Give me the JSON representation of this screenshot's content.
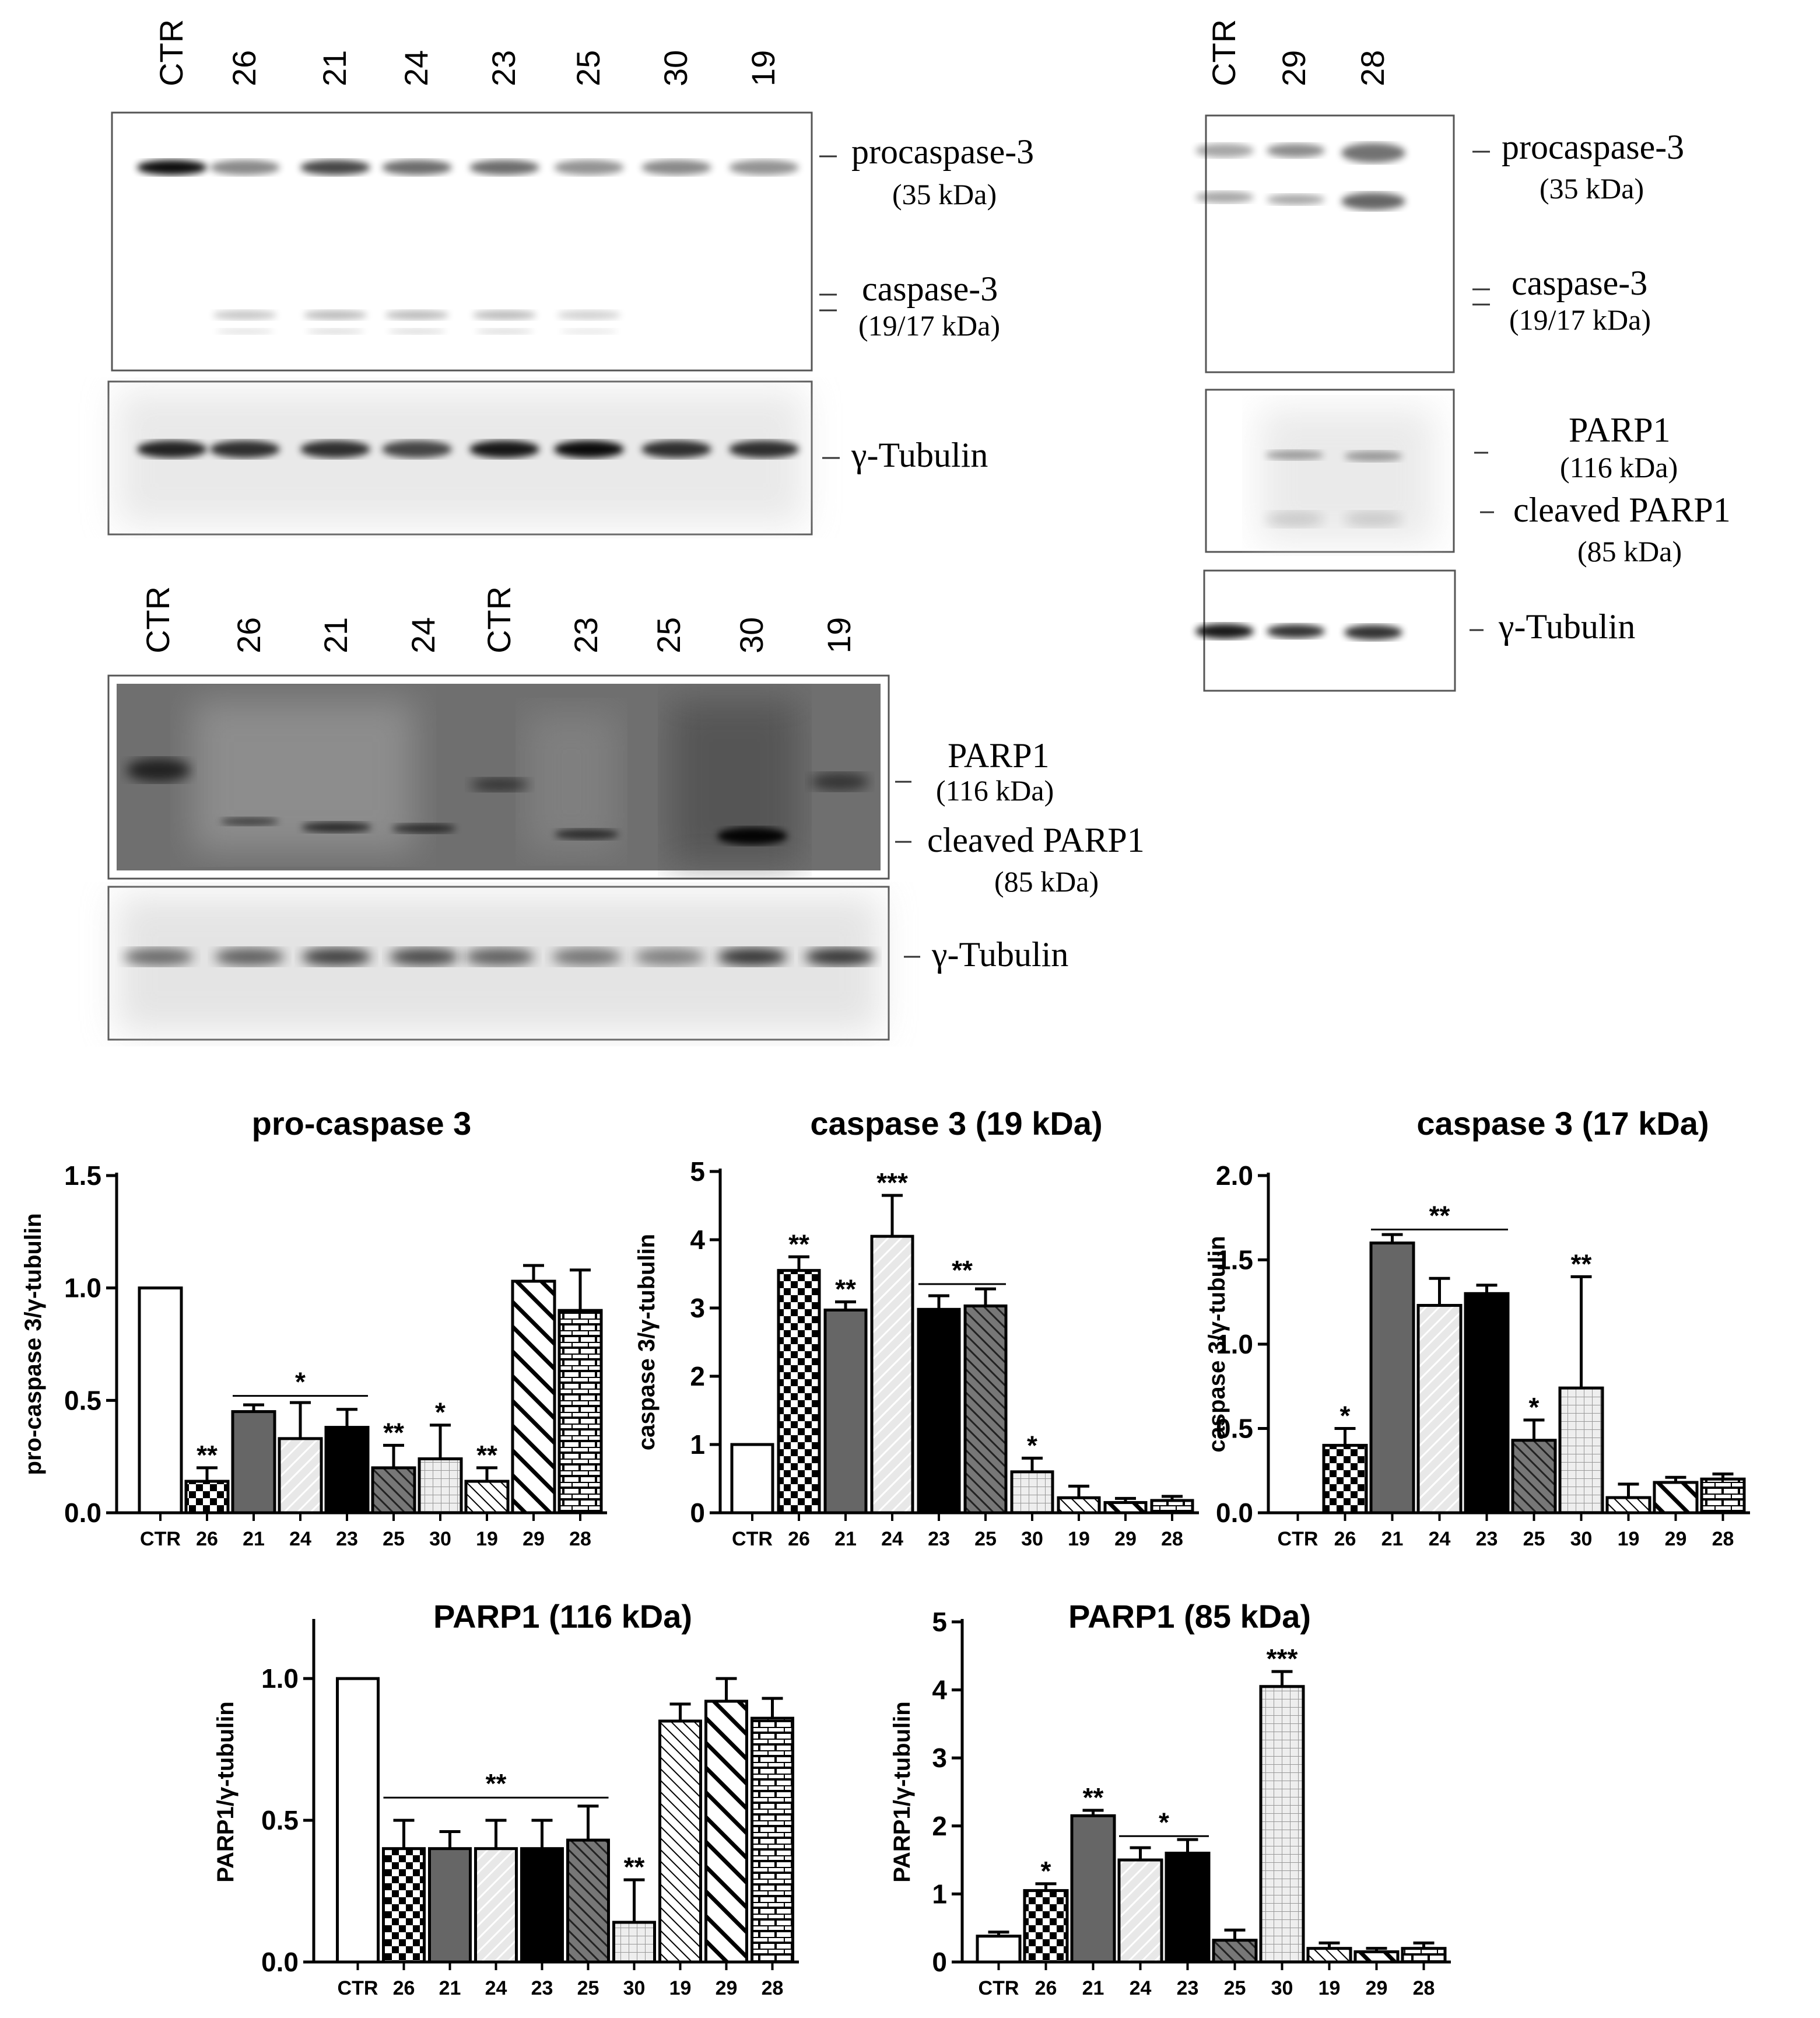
{
  "blots": {
    "caspase_top_left": {
      "lanes": [
        "CTR",
        "26",
        "21",
        "24",
        "23",
        "25",
        "30",
        "19"
      ],
      "labels": {
        "procaspase": "procaspase-3",
        "procaspase_kda": "(35 kDa)",
        "caspase": "caspase-3",
        "caspase_kda": "(19/17 kDa)",
        "tubulin": "γ-Tubulin"
      },
      "procaspase_intensity": [
        1.0,
        0.35,
        0.7,
        0.5,
        0.5,
        0.3,
        0.35,
        0.3
      ],
      "caspase_intensity": [
        0,
        0.25,
        0.3,
        0.3,
        0.3,
        0.2,
        0,
        0
      ],
      "tubulin_intensity": [
        0.85,
        0.8,
        0.8,
        0.7,
        0.9,
        0.95,
        0.8,
        0.8
      ]
    },
    "parp_bottom_left": {
      "lanes": [
        "CTR",
        "26",
        "21",
        "24",
        "CTR",
        "23",
        "25",
        "30",
        "19"
      ],
      "labels": {
        "parp": "PARP1",
        "parp_kda": "(116 kDa)",
        "cleaved": "cleaved PARP1",
        "cleaved_kda": "(85 kDa)",
        "tubulin": "γ-Tubulin"
      }
    },
    "right": {
      "lanes": [
        "CTR",
        "29",
        "28"
      ],
      "labels": {
        "procaspase": "procaspase-3",
        "procaspase_kda": "(35 kDa)",
        "caspase": "caspase-3",
        "caspase_kda": "(19/17 kDa)",
        "parp": "PARP1",
        "parp_kda": "(116 kDa)",
        "cleaved": "cleaved PARP1",
        "cleaved_kda": "(85 kDa)",
        "tubulin": "γ-Tubulin"
      }
    }
  },
  "chart_data": [
    {
      "type": "bar",
      "title": "pro-caspase 3",
      "ylabel": "pro-caspase 3/γ-tubulin",
      "xlabel": "",
      "categories": [
        "CTR",
        "26",
        "21",
        "24",
        "23",
        "25",
        "30",
        "19",
        "29",
        "28"
      ],
      "values": [
        1.0,
        0.14,
        0.45,
        0.33,
        0.38,
        0.2,
        0.24,
        0.14,
        1.03,
        0.9
      ],
      "errors": [
        0,
        0.06,
        0.03,
        0.16,
        0.08,
        0.1,
        0.15,
        0.06,
        0.07,
        0.18
      ],
      "ylim": [
        0,
        1.5
      ],
      "yticks": [
        "0.0",
        "0.5",
        "1.0",
        "1.5"
      ],
      "significance": [
        {
          "category": "26",
          "label": "**"
        },
        {
          "category": "25",
          "label": "**"
        },
        {
          "category": "30",
          "label": "*"
        },
        {
          "category": "19",
          "label": "**"
        }
      ],
      "brackets": [
        {
          "from": "21",
          "to": "23",
          "label": "*",
          "y": 0.52
        }
      ]
    },
    {
      "type": "bar",
      "title": "caspase 3 (19 kDa)",
      "ylabel": "caspase 3/γ-tubulin",
      "xlabel": "",
      "categories": [
        "CTR",
        "26",
        "21",
        "24",
        "23",
        "25",
        "30",
        "19",
        "29",
        "28"
      ],
      "values": [
        1.0,
        3.55,
        2.97,
        4.05,
        2.98,
        3.03,
        0.6,
        0.22,
        0.15,
        0.18
      ],
      "errors": [
        0,
        0.2,
        0.12,
        0.6,
        0.2,
        0.25,
        0.2,
        0.17,
        0.06,
        0.06
      ],
      "ylim": [
        0,
        5
      ],
      "yticks": [
        "0",
        "1",
        "2",
        "3",
        "4",
        "5"
      ],
      "significance": [
        {
          "category": "26",
          "label": "**"
        },
        {
          "category": "21",
          "label": "**"
        },
        {
          "category": "24",
          "label": "***"
        },
        {
          "category": "30",
          "label": "*"
        }
      ],
      "brackets": [
        {
          "from": "23",
          "to": "25",
          "label": "**",
          "y": 3.35
        }
      ]
    },
    {
      "type": "bar",
      "title": "caspase 3 (17 kDa)",
      "ylabel": "caspase 3/γ-tubulin",
      "xlabel": "",
      "categories": [
        "CTR",
        "26",
        "21",
        "24",
        "23",
        "25",
        "30",
        "19",
        "29",
        "28"
      ],
      "values": [
        0,
        0.4,
        1.6,
        1.23,
        1.3,
        0.43,
        0.74,
        0.09,
        0.18,
        0.2
      ],
      "errors": [
        0,
        0.1,
        0.05,
        0.16,
        0.05,
        0.12,
        0.66,
        0.08,
        0.03,
        0.03
      ],
      "ylim": [
        0,
        2.0
      ],
      "yticks": [
        "0.0",
        "0.5",
        "1.0",
        "1.5",
        "2.0"
      ],
      "significance": [
        {
          "category": "26",
          "label": "*"
        },
        {
          "category": "25",
          "label": "*"
        },
        {
          "category": "30",
          "label": "**"
        }
      ],
      "brackets": [
        {
          "from": "21",
          "to": "23",
          "label": "**",
          "y": 1.68
        }
      ]
    },
    {
      "type": "bar",
      "title": "PARP1 (116 kDa)",
      "ylabel": "PARP1/γ-tubulin",
      "xlabel": "",
      "categories": [
        "CTR",
        "26",
        "21",
        "24",
        "23",
        "25",
        "30",
        "19",
        "29",
        "28"
      ],
      "values": [
        1.0,
        0.4,
        0.4,
        0.4,
        0.4,
        0.43,
        0.14,
        0.85,
        0.92,
        0.86
      ],
      "errors": [
        0,
        0.1,
        0.06,
        0.1,
        0.1,
        0.12,
        0.15,
        0.06,
        0.08,
        0.07
      ],
      "ylim": [
        0,
        1.2
      ],
      "yticks": [
        "0.0",
        "0.5",
        "1.0"
      ],
      "significance": [
        {
          "category": "30",
          "label": "**"
        }
      ],
      "brackets": [
        {
          "from": "26",
          "to": "25",
          "label": "**",
          "y": 0.58
        }
      ]
    },
    {
      "type": "bar",
      "title": "PARP1 (85 kDa)",
      "ylabel": "PARP1/γ-tubulin",
      "xlabel": "",
      "categories": [
        "CTR",
        "26",
        "21",
        "24",
        "23",
        "25",
        "30",
        "19",
        "29",
        "28"
      ],
      "values": [
        0.38,
        1.05,
        2.15,
        1.5,
        1.6,
        0.32,
        4.05,
        0.2,
        0.15,
        0.2
      ],
      "errors": [
        0.06,
        0.1,
        0.08,
        0.18,
        0.2,
        0.15,
        0.22,
        0.08,
        0.05,
        0.08
      ],
      "ylim": [
        0,
        5
      ],
      "yticks": [
        "0",
        "1",
        "2",
        "3",
        "4",
        "5"
      ],
      "significance": [
        {
          "category": "26",
          "label": "*"
        },
        {
          "category": "21",
          "label": "**"
        },
        {
          "category": "30",
          "label": "***"
        }
      ],
      "brackets": [
        {
          "from": "24",
          "to": "23",
          "label": "*",
          "y": 1.85
        }
      ]
    }
  ]
}
